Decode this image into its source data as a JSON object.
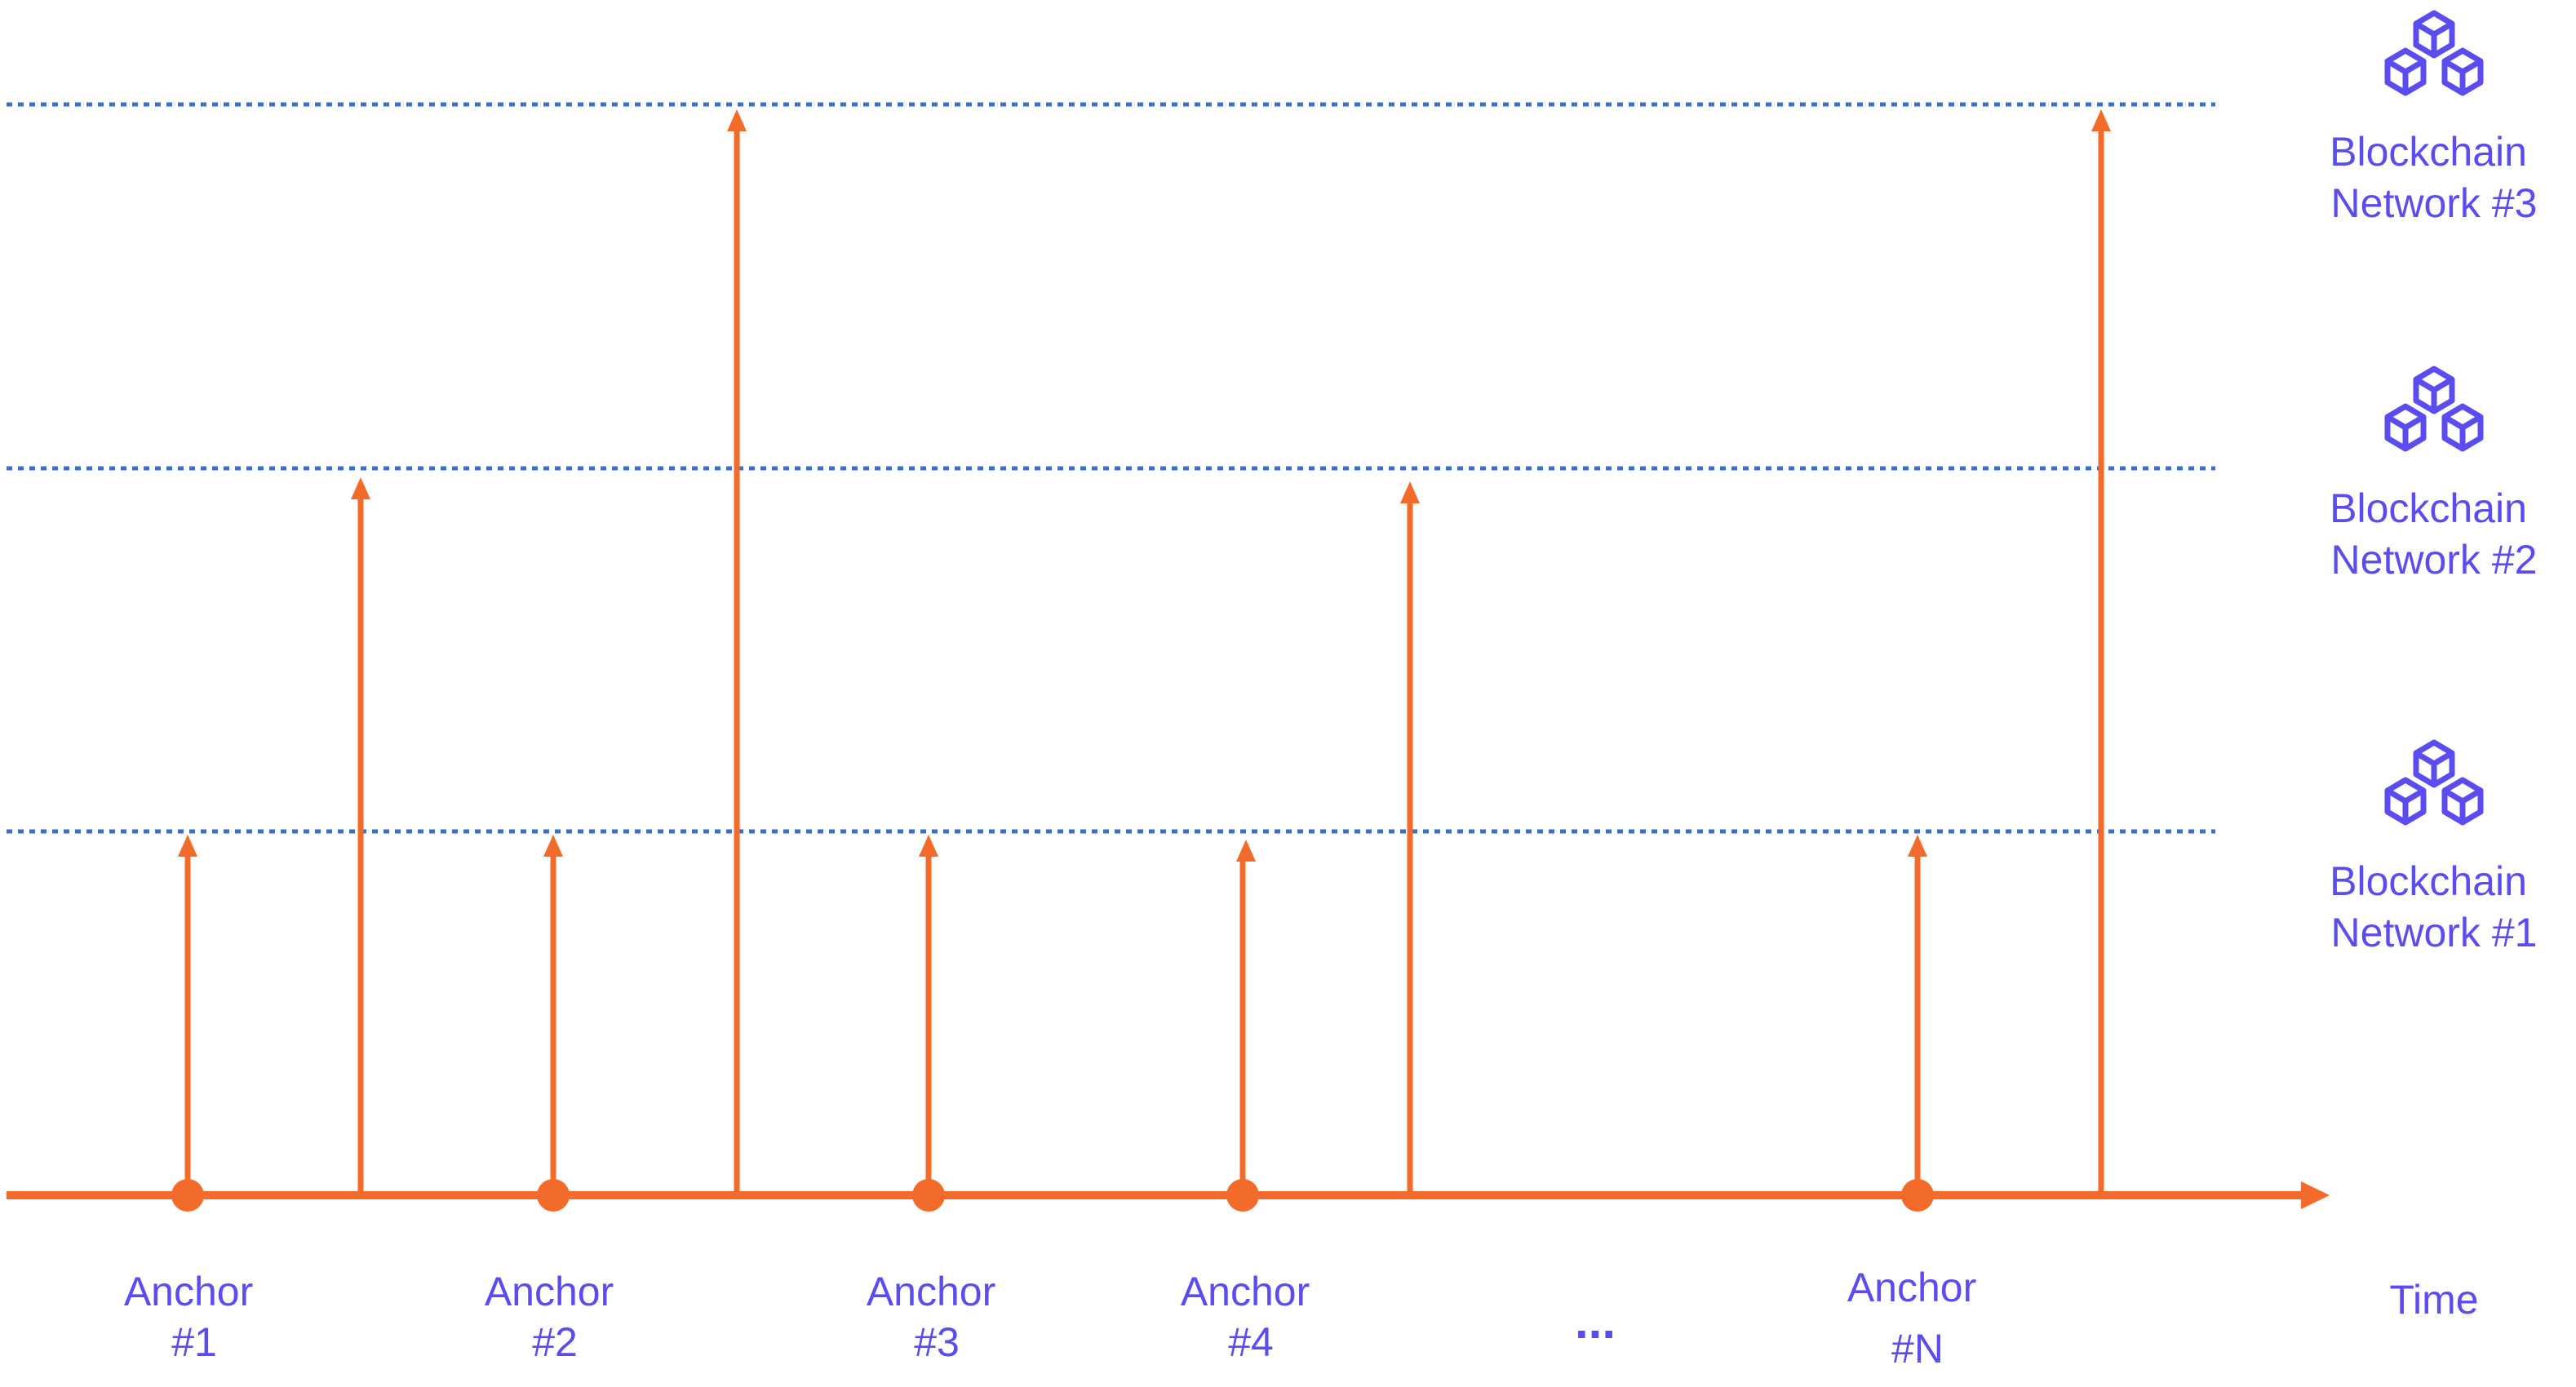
{
  "colors": {
    "timeline": "#f26b2a",
    "label": "#5b4cf0",
    "network_line": "#3d6fc4"
  },
  "networks": [
    {
      "level": 1,
      "line1": "Blockchain",
      "line2": "Network #1",
      "icon": "blockchain-cubes-icon"
    },
    {
      "level": 2,
      "line1": "Blockchain",
      "line2": "Network #2",
      "icon": "blockchain-cubes-icon"
    },
    {
      "level": 3,
      "line1": "Blockchain",
      "line2": "Network #3",
      "icon": "blockchain-cubes-icon"
    }
  ],
  "anchors": [
    {
      "line1": "Anchor",
      "line2": "#1"
    },
    {
      "line1": "Anchor",
      "line2": "#2"
    },
    {
      "line1": "Anchor",
      "line2": "#3"
    },
    {
      "line1": "Anchor",
      "line2": "#4"
    },
    {
      "line1": "Anchor",
      "line2": "#N"
    }
  ],
  "ellipsis": "...",
  "axis_label": "Time",
  "events": [
    {
      "kind": "anchor",
      "anchor": 1,
      "network": 1
    },
    {
      "kind": "publish",
      "network": 2
    },
    {
      "kind": "anchor",
      "anchor": 2,
      "network": 1
    },
    {
      "kind": "publish",
      "network": 3
    },
    {
      "kind": "anchor",
      "anchor": 3,
      "network": 1
    },
    {
      "kind": "anchor",
      "anchor": 4,
      "network": 1
    },
    {
      "kind": "publish",
      "network": 2
    },
    {
      "kind": "anchor",
      "anchor": 5,
      "network": 1
    },
    {
      "kind": "publish",
      "network": 3
    }
  ]
}
